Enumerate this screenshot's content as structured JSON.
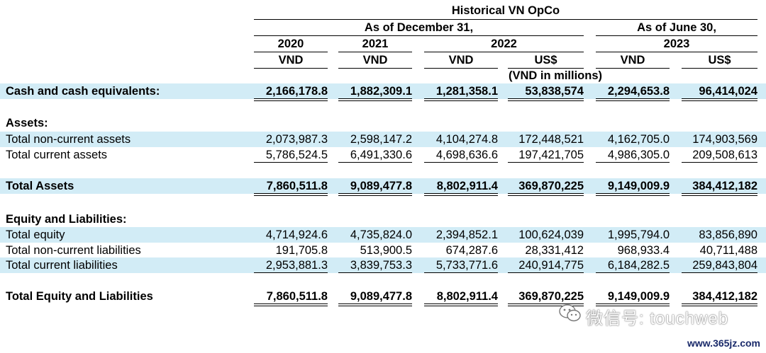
{
  "header": {
    "entity": "Historical VN OpCo",
    "group_dec": "As of December 31,",
    "group_jun": "As of June 30,",
    "years": [
      "2020",
      "2021",
      "2022",
      "2023"
    ],
    "currencies": [
      "VND",
      "VND",
      "VND",
      "US$",
      "VND",
      "US$"
    ],
    "unit_note": "(VND in millions)"
  },
  "rows": {
    "cash": {
      "label": "Cash and cash equivalents:",
      "values": [
        "2,166,178.8",
        "1,882,309.1",
        "1,281,358.1",
        "53,838,574",
        "2,294,653.8",
        "96,414,024"
      ]
    },
    "assets_heading": {
      "label": "Assets:"
    },
    "noncurrent_assets": {
      "label": "Total non-current assets",
      "values": [
        "2,073,987.3",
        "2,598,147.2",
        "4,104,274.8",
        "172,448,521",
        "4,162,705.0",
        "174,903,569"
      ]
    },
    "current_assets": {
      "label": "Total current assets",
      "values": [
        "5,786,524.5",
        "6,491,330.6",
        "4,698,636.6",
        "197,421,705",
        "4,986,305.0",
        "209,508,613"
      ]
    },
    "total_assets": {
      "label": "Total Assets",
      "values": [
        "7,860,511.8",
        "9,089,477.8",
        "8,802,911.4",
        "369,870,225",
        "9,149,009.9",
        "384,412,182"
      ]
    },
    "eq_heading": {
      "label": "Equity and Liabilities:"
    },
    "total_equity": {
      "label": "Total equity",
      "values": [
        "4,714,924.6",
        "4,735,824.0",
        "2,394,852.1",
        "100,624,039",
        "1,995,794.0",
        "83,856,890"
      ]
    },
    "noncurrent_liab": {
      "label": "Total non-current liabilities",
      "values": [
        "191,705.8",
        "513,900.5",
        "674,287.6",
        "28,331,412",
        "968,933.4",
        "40,711,488"
      ]
    },
    "current_liab": {
      "label": "Total current liabilities",
      "values": [
        "2,953,881.3",
        "3,839,753.3",
        "5,733,771.6",
        "240,914,775",
        "6,184,282.5",
        "259,843,804"
      ]
    },
    "total_eq_liab": {
      "label": "Total Equity and Liabilities",
      "values": [
        "7,860,511.8",
        "9,089,477.8",
        "8,802,911.4",
        "369,870,225",
        "9,149,009.9",
        "384,412,182"
      ]
    }
  },
  "watermark": {
    "text": "微信号: touchweb",
    "site": "www.365jz.com",
    "icon": "wechat-icon"
  }
}
